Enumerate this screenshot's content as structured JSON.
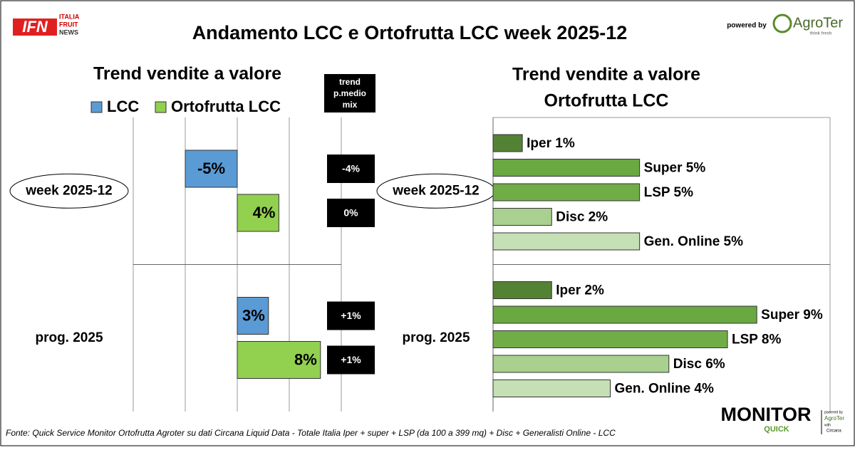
{
  "title": "Andamento LCC e Ortofrutta LCC week 2025-12",
  "branding": {
    "ifn": "IFN",
    "ifn_tagline": [
      "ITALIA",
      "FRUIT",
      "NEWS"
    ],
    "powered_by": "powered by",
    "agroter": "AgroTer",
    "agroter_tagline": "think fresh",
    "monitor": "MONITOR",
    "quick": "QUICK",
    "monitor_credits": [
      "powered by",
      "AgroTer",
      "with",
      "Circana"
    ]
  },
  "source": "Fonte: Quick Service Monitor Ortofrutta Agroter su dati Circana Liquid Data - Totale Italia Iper + super + LSP (da 100 a 399 mq) + Disc + Generalisti Online - LCC",
  "chart_data": [
    {
      "type": "bar",
      "orientation": "horizontal",
      "title": "Trend vendite a valore",
      "categories": [
        "week 2025-12",
        "prog. 2025"
      ],
      "series": [
        {
          "name": "LCC",
          "color": "#5b9bd5",
          "values": [
            -5,
            3
          ],
          "value_labels": [
            "-5%",
            "3%"
          ],
          "trend_values": [
            -4,
            1
          ],
          "trend_labels": [
            "-4%",
            "+1%"
          ]
        },
        {
          "name": "Ortofrutta LCC",
          "color": "#92d050",
          "values": [
            4,
            8
          ],
          "value_labels": [
            "4%",
            "8%"
          ],
          "trend_values": [
            0,
            1
          ],
          "trend_labels": [
            "0%",
            "+1%"
          ]
        }
      ],
      "trend_title": "trend p.medio mix",
      "xlim": [
        -10,
        10
      ],
      "xticks": [
        -10,
        -5,
        0,
        5,
        10
      ],
      "grid": true,
      "legend": "top",
      "label_position": "inside"
    },
    {
      "type": "bar",
      "orientation": "horizontal",
      "title": "Trend vendite a valore",
      "subtitle": "Ortofrutta LCC",
      "categories": [
        "week 2025-12",
        "prog. 2025"
      ],
      "series": [
        {
          "color": "#548235",
          "values": [
            1,
            2
          ],
          "value_labels": [
            "Iper 1%",
            "Iper 2%"
          ]
        },
        {
          "color": "#6aa842",
          "values": [
            5,
            9
          ],
          "value_labels": [
            "Super 5%",
            "Super 9%"
          ]
        },
        {
          "color": "#70ad47",
          "values": [
            5,
            8
          ],
          "value_labels": [
            "LSP 5%",
            "LSP 8%"
          ]
        },
        {
          "color": "#a9d08e",
          "values": [
            2,
            6
          ],
          "value_labels": [
            "Disc 2%",
            "Disc 6%"
          ]
        },
        {
          "color": "#c5e0b4",
          "values": [
            5,
            4
          ],
          "value_labels": [
            "Gen. Online 5%",
            "Gen. Online 4%"
          ]
        }
      ],
      "xlim": [
        0,
        11.5
      ],
      "grid": false,
      "label_position": "outside"
    }
  ]
}
